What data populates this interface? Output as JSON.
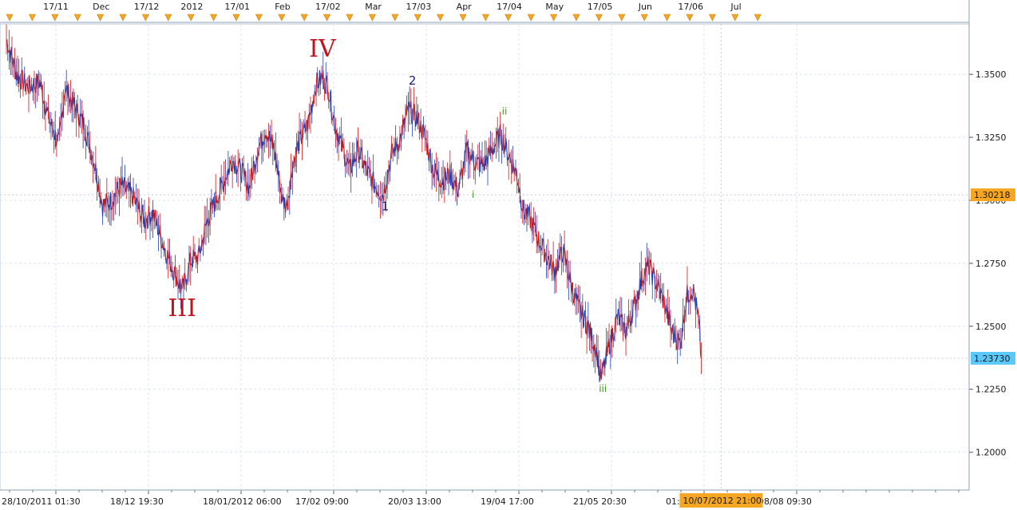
{
  "chart_data": {
    "type": "line",
    "title": "",
    "xlabel": "",
    "ylabel": "",
    "ylim": [
      1.185,
      1.37
    ],
    "y_ticks": [
      {
        "value": 1.35,
        "label": "1.3500"
      },
      {
        "value": 1.325,
        "label": "1.3250"
      },
      {
        "value": 1.3,
        "label": "1.3000"
      },
      {
        "value": 1.275,
        "label": "1.2750"
      },
      {
        "value": 1.25,
        "label": "1.2500"
      },
      {
        "value": 1.225,
        "label": "1.2250"
      },
      {
        "value": 1.2,
        "label": "1.2000"
      }
    ],
    "top_axis_labels": [
      "17/11",
      "Dec",
      "17/12",
      "2012",
      "17/01",
      "Feb",
      "17/02",
      "Mar",
      "17/03",
      "Apr",
      "17/04",
      "May",
      "17/05",
      "Jun",
      "17/06",
      "Jul"
    ],
    "bottom_axis_labels": [
      "28/10/2011 01:30",
      "18/12 19:30",
      "18/01/2012 06:00",
      "17/02 09:00",
      "20/03 13:00",
      "19/04 17:00",
      "21/05 20:30",
      "01:30",
      "08/08 09:30"
    ],
    "cursor_time_label": "10/07/2012 21:00",
    "price_markers": [
      {
        "value": 1.30218,
        "label": "1.30218",
        "color": "#f5a623"
      },
      {
        "value": 1.2373,
        "label": "1.23730",
        "color": "#5ac8fa"
      }
    ],
    "series": [
      {
        "color": "#d01818",
        "alt_color": "#1f3fb8",
        "points": [
          {
            "x": 0,
            "y": 1.364
          },
          {
            "x": 5,
            "y": 1.35
          },
          {
            "x": 10,
            "y": 1.345
          },
          {
            "x": 16,
            "y": 1.347
          },
          {
            "x": 20,
            "y": 1.333
          },
          {
            "x": 25,
            "y": 1.322
          },
          {
            "x": 28,
            "y": 1.345
          },
          {
            "x": 32,
            "y": 1.338
          },
          {
            "x": 37,
            "y": 1.33
          },
          {
            "x": 42,
            "y": 1.315
          },
          {
            "x": 46,
            "y": 1.298
          },
          {
            "x": 50,
            "y": 1.3
          },
          {
            "x": 55,
            "y": 1.306
          },
          {
            "x": 60,
            "y": 1.302
          },
          {
            "x": 66,
            "y": 1.292
          },
          {
            "x": 70,
            "y": 1.295
          },
          {
            "x": 76,
            "y": 1.28
          },
          {
            "x": 80,
            "y": 1.272
          },
          {
            "x": 84,
            "y": 1.264
          },
          {
            "x": 88,
            "y": 1.276
          },
          {
            "x": 92,
            "y": 1.278
          },
          {
            "x": 96,
            "y": 1.292
          },
          {
            "x": 100,
            "y": 1.3
          },
          {
            "x": 104,
            "y": 1.308
          },
          {
            "x": 108,
            "y": 1.316
          },
          {
            "x": 112,
            "y": 1.312
          },
          {
            "x": 116,
            "y": 1.305
          },
          {
            "x": 120,
            "y": 1.32
          },
          {
            "x": 124,
            "y": 1.328
          },
          {
            "x": 128,
            "y": 1.32
          },
          {
            "x": 132,
            "y": 1.3
          },
          {
            "x": 134,
            "y": 1.298
          },
          {
            "x": 137,
            "y": 1.315
          },
          {
            "x": 140,
            "y": 1.323
          },
          {
            "x": 144,
            "y": 1.33
          },
          {
            "x": 148,
            "y": 1.346
          },
          {
            "x": 151,
            "y": 1.349
          },
          {
            "x": 154,
            "y": 1.344
          },
          {
            "x": 157,
            "y": 1.33
          },
          {
            "x": 160,
            "y": 1.322
          },
          {
            "x": 164,
            "y": 1.312
          },
          {
            "x": 168,
            "y": 1.32
          },
          {
            "x": 172,
            "y": 1.312
          },
          {
            "x": 176,
            "y": 1.306
          },
          {
            "x": 180,
            "y": 1.302
          },
          {
            "x": 184,
            "y": 1.318
          },
          {
            "x": 188,
            "y": 1.324
          },
          {
            "x": 192,
            "y": 1.336
          },
          {
            "x": 196,
            "y": 1.333
          },
          {
            "x": 200,
            "y": 1.325
          },
          {
            "x": 204,
            "y": 1.312
          },
          {
            "x": 208,
            "y": 1.308
          },
          {
            "x": 212,
            "y": 1.31
          },
          {
            "x": 216,
            "y": 1.304
          },
          {
            "x": 220,
            "y": 1.32
          },
          {
            "x": 224,
            "y": 1.315
          },
          {
            "x": 228,
            "y": 1.314
          },
          {
            "x": 232,
            "y": 1.32
          },
          {
            "x": 236,
            "y": 1.326
          },
          {
            "x": 240,
            "y": 1.318
          },
          {
            "x": 244,
            "y": 1.31
          },
          {
            "x": 247,
            "y": 1.296
          },
          {
            "x": 250,
            "y": 1.293
          },
          {
            "x": 254,
            "y": 1.285
          },
          {
            "x": 258,
            "y": 1.278
          },
          {
            "x": 262,
            "y": 1.272
          },
          {
            "x": 266,
            "y": 1.28
          },
          {
            "x": 270,
            "y": 1.266
          },
          {
            "x": 274,
            "y": 1.256
          },
          {
            "x": 278,
            "y": 1.25
          },
          {
            "x": 282,
            "y": 1.24
          },
          {
            "x": 284,
            "y": 1.229
          },
          {
            "x": 288,
            "y": 1.242
          },
          {
            "x": 292,
            "y": 1.254
          },
          {
            "x": 296,
            "y": 1.248
          },
          {
            "x": 300,
            "y": 1.258
          },
          {
            "x": 304,
            "y": 1.27
          },
          {
            "x": 307,
            "y": 1.274
          },
          {
            "x": 310,
            "y": 1.268
          },
          {
            "x": 314,
            "y": 1.26
          },
          {
            "x": 318,
            "y": 1.248
          },
          {
            "x": 322,
            "y": 1.243
          },
          {
            "x": 325,
            "y": 1.262
          },
          {
            "x": 328,
            "y": 1.265
          },
          {
            "x": 330,
            "y": 1.256
          },
          {
            "x": 331,
            "y": 1.249
          },
          {
            "x": 332,
            "y": 1.2373
          }
        ]
      }
    ],
    "annotations": [
      {
        "text": "III",
        "x": 84,
        "y": 1.254,
        "style": "big"
      },
      {
        "text": "IV",
        "x": 151,
        "y": 1.357,
        "style": "big"
      },
      {
        "text": "1",
        "x": 181,
        "y": 1.296,
        "style": "mid"
      },
      {
        "text": "2",
        "x": 194,
        "y": 1.346,
        "style": "mid"
      },
      {
        "text": "i",
        "x": 223,
        "y": 1.301,
        "style": "small"
      },
      {
        "text": "ii",
        "x": 238,
        "y": 1.334,
        "style": "small"
      },
      {
        "text": "iii",
        "x": 285,
        "y": 1.224,
        "style": "small"
      }
    ]
  }
}
